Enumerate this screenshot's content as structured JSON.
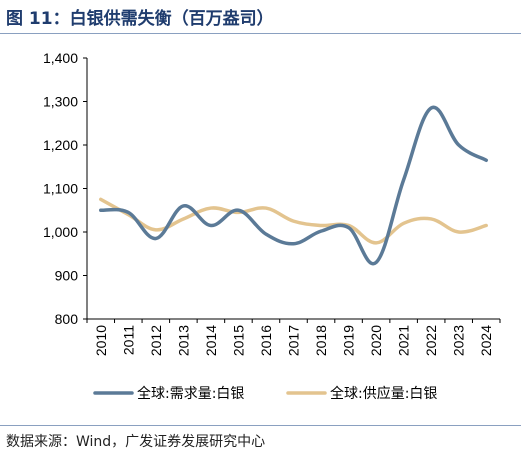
{
  "title": "图 11：白银供需失衡（百万盎司）",
  "source": "数据来源：Wind，广发证券发展研究中心",
  "colors": {
    "demand": "#5b7a97",
    "supply": "#e3c48f",
    "axis": "#000000",
    "title": "#1f3c6e"
  },
  "chart_data": {
    "type": "line",
    "x": [
      "2010",
      "2011",
      "2012",
      "2013",
      "2014",
      "2015",
      "2016",
      "2017",
      "2018",
      "2019",
      "2020",
      "2021",
      "2022",
      "2023",
      "2024"
    ],
    "ylim": [
      800,
      1400
    ],
    "yticks": [
      "800",
      "900",
      "1,000",
      "1,100",
      "1,200",
      "1,300",
      "1,400"
    ],
    "ytick_values": [
      800,
      900,
      1000,
      1100,
      1200,
      1300,
      1400
    ],
    "grid": false,
    "legend_position": "bottom",
    "series": [
      {
        "name": "全球:需求量:白银",
        "color": "#5b7a97",
        "values": [
          1050,
          1045,
          985,
          1060,
          1015,
          1050,
          995,
          973,
          1002,
          1010,
          930,
          1120,
          1285,
          1200,
          1165
        ]
      },
      {
        "name": "全球:供应量:白银",
        "color": "#e3c48f",
        "values": [
          1075,
          1040,
          1005,
          1030,
          1055,
          1045,
          1055,
          1025,
          1015,
          1015,
          975,
          1020,
          1030,
          1000,
          1015
        ]
      }
    ]
  }
}
